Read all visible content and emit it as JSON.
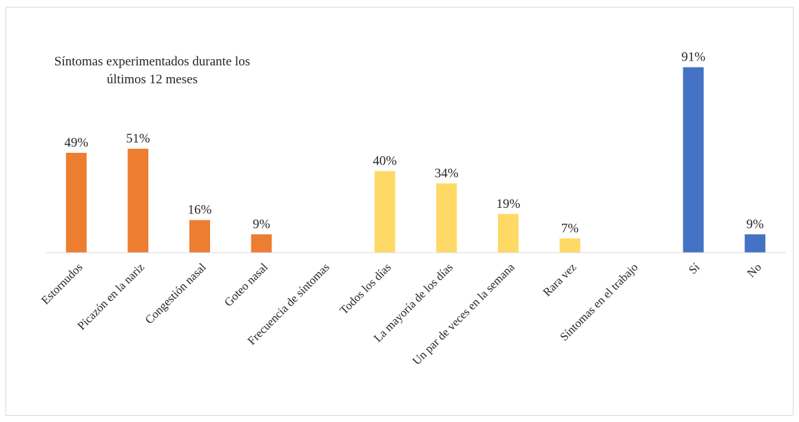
{
  "chart_data": {
    "type": "bar",
    "title": "Síntomas experimentados durante los últimos 12 meses",
    "title_lines": [
      "Síntomas experimentados durante los",
      "últimos 12 meses"
    ],
    "categories": [
      "Estornudos",
      "Picazón en la nariz",
      "Congestión nasal",
      "Goteo nasal",
      "Frecuencia de síntomas",
      "Todos los días",
      "La mayoría de los días",
      "Un par de veces en la semana",
      "Rara vez",
      "Síntomas en el trabajo",
      "Sí",
      "No"
    ],
    "values": [
      49,
      51,
      16,
      9,
      null,
      40,
      34,
      19,
      7,
      null,
      91,
      9
    ],
    "value_labels": [
      "49%",
      "51%",
      "16%",
      "9%",
      "",
      "40%",
      "34%",
      "19%",
      "7%",
      "",
      "91%",
      "9%"
    ],
    "bar_colors": [
      "#ED7D31",
      "#ED7D31",
      "#ED7D31",
      "#ED7D31",
      "",
      "#FFD966",
      "#FFD966",
      "#FFD966",
      "#FFD966",
      "",
      "#4472C4",
      "#4472C4"
    ],
    "xlabel": "",
    "ylabel": "",
    "ylim": [
      0,
      100
    ],
    "grid": false,
    "legend": "none"
  }
}
